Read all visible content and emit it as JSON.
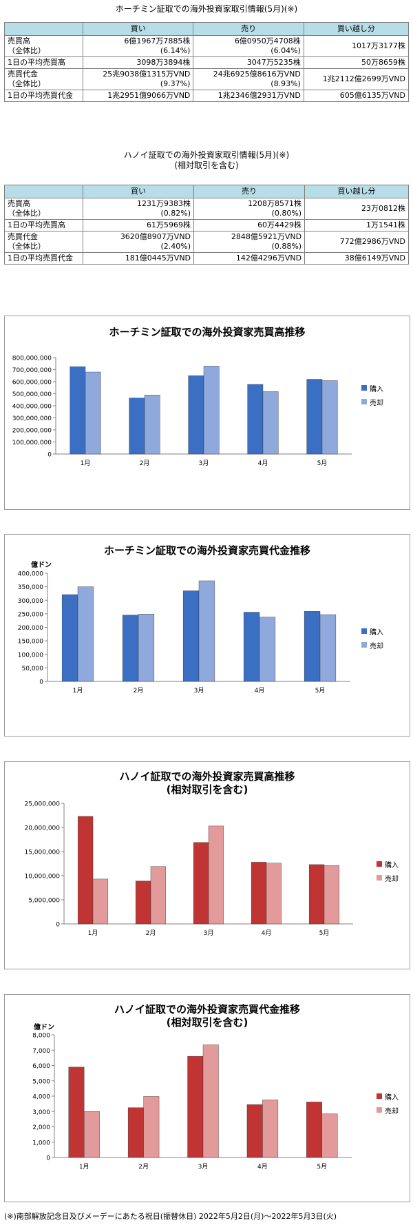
{
  "tables": [
    {
      "title": "ホーチミン証取での海外投資家取引情報(5月)(※)",
      "headers": [
        "",
        "買い",
        "売り",
        "買い越し分"
      ],
      "rows": [
        [
          "売買高\n（全体比）",
          "6億1967万7885株\n(6.14%)",
          "6億0950万4708株\n(6.04%)",
          "1017万3177株"
        ],
        [
          "1日の平均売買高",
          "3098万3894株",
          "3047万5235株",
          "50万8659株"
        ],
        [
          "売買代金\n（全体比）",
          "25兆9038億1315万VND\n(9.37%)",
          "24兆6925億8616万VND\n(8.93%)",
          "1兆2112億2699万VND"
        ],
        [
          "1日の平均売買代金",
          "1兆2951億9066万VND",
          "1兆2346億2931万VND",
          "605億6135万VND"
        ]
      ]
    },
    {
      "title": "ハノイ証取での海外投資家取引情報(5月)(※)\n(相対取引を含む)",
      "headers": [
        "",
        "買い",
        "売り",
        "買い越し分"
      ],
      "rows": [
        [
          "売買高\n（全体比）",
          "1231万9383株\n(0.82%)",
          "1208万8571株\n(0.80%)",
          "23万0812株"
        ],
        [
          "1日の平均売買高",
          "61万5969株",
          "60万4429株",
          "1万1541株"
        ],
        [
          "売買代金\n（全体比）",
          "3620億8907万VND\n(2.40%)",
          "2848億5921万VND\n(0.88%)",
          "772億2986万VND"
        ],
        [
          "1日の平均売買代金",
          "181億0445万VND",
          "142億4296万VND",
          "38億6149万VND"
        ]
      ]
    }
  ],
  "chart_data": [
    {
      "type": "bar",
      "title": "ホーチミン証取での海外投資家売買高推移",
      "unit": "",
      "categories": [
        "1月",
        "2月",
        "3月",
        "4月",
        "5月"
      ],
      "series": [
        {
          "name": "購入",
          "values": [
            725000000,
            465000000,
            650000000,
            578000000,
            620000000
          ]
        },
        {
          "name": "売却",
          "values": [
            680000000,
            490000000,
            730000000,
            518000000,
            609000000
          ]
        }
      ],
      "ylim": [
        0,
        800000000
      ],
      "yticks": [
        0,
        100000000,
        200000000,
        300000000,
        400000000,
        500000000,
        600000000,
        700000000,
        800000000
      ],
      "ytick_labels": [
        "0",
        "100,000,000",
        "200,000,000",
        "300,000,000",
        "400,000,000",
        "500,000,000",
        "600,000,000",
        "700,000,000",
        "800,000,000"
      ],
      "colors": {
        "buy": "#3a6fc4",
        "sell": "#8fa9dc"
      },
      "legend": "right"
    },
    {
      "type": "bar",
      "title": "ホーチミン証取での海外投資家売買代金推移",
      "unit": "億ドン",
      "categories": [
        "1月",
        "2月",
        "3月",
        "4月",
        "5月"
      ],
      "series": [
        {
          "name": "購入",
          "values": [
            321000,
            245000,
            335000,
            256000,
            259000
          ]
        },
        {
          "name": "売却",
          "values": [
            350000,
            249000,
            372000,
            238000,
            247000
          ]
        }
      ],
      "ylim": [
        0,
        400000
      ],
      "yticks": [
        0,
        50000,
        100000,
        150000,
        200000,
        250000,
        300000,
        350000,
        400000
      ],
      "ytick_labels": [
        "0",
        "50,000",
        "100,000",
        "150,000",
        "200,000",
        "250,000",
        "300,000",
        "350,000",
        "400,000"
      ],
      "colors": {
        "buy": "#3a6fc4",
        "sell": "#8fa9dc"
      },
      "legend": "right"
    },
    {
      "type": "bar",
      "title": "ハノイ証取での海外投資家売買高推移\n(相対取引を含む)",
      "unit": "",
      "categories": [
        "1月",
        "2月",
        "3月",
        "4月",
        "5月"
      ],
      "series": [
        {
          "name": "購入",
          "values": [
            22300000,
            8900000,
            16900000,
            12800000,
            12300000
          ]
        },
        {
          "name": "売却",
          "values": [
            9300000,
            11900000,
            20300000,
            12600000,
            12100000
          ]
        }
      ],
      "ylim": [
        0,
        25000000
      ],
      "yticks": [
        0,
        5000000,
        10000000,
        15000000,
        20000000,
        25000000
      ],
      "ytick_labels": [
        "0",
        "5,000,000",
        "10,000,000",
        "15,000,000",
        "20,000,000",
        "25,000,000"
      ],
      "colors": {
        "buy": "#c03434",
        "sell": "#e39a9a"
      },
      "legend": "right"
    },
    {
      "type": "bar",
      "title": "ハノイ証取での海外投資家売買代金推移\n(相対取引を含む)",
      "unit": "億ドン",
      "categories": [
        "1月",
        "2月",
        "3月",
        "4月",
        "5月"
      ],
      "series": [
        {
          "name": "購入",
          "values": [
            5900,
            3250,
            6600,
            3450,
            3620
          ]
        },
        {
          "name": "売却",
          "values": [
            3000,
            3980,
            7350,
            3760,
            2850
          ]
        }
      ],
      "ylim": [
        0,
        8000
      ],
      "yticks": [
        0,
        1000,
        2000,
        3000,
        4000,
        5000,
        6000,
        7000,
        8000
      ],
      "ytick_labels": [
        "0",
        "1,000",
        "2,000",
        "3,000",
        "4,000",
        "5,000",
        "6,000",
        "7,000",
        "8,000"
      ],
      "colors": {
        "buy": "#c03434",
        "sell": "#e39a9a"
      },
      "legend": "right"
    }
  ],
  "footnote": "(※)南部解放記念日及びメーデーにあたる祝日(振替休日) 2022年5月2日(月)〜2022年5月3日(火)"
}
